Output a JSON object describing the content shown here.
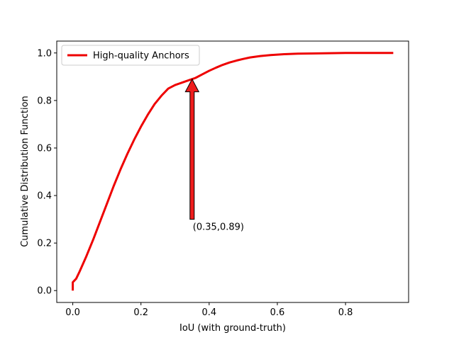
{
  "chart_data": {
    "type": "line",
    "title": "",
    "xlabel": "IoU (with ground-truth)",
    "ylabel": "Cumulative Distribution Function",
    "xlim": [
      -0.047,
      0.985
    ],
    "ylim": [
      -0.05,
      1.05
    ],
    "xticks": [
      0.0,
      0.2,
      0.4,
      0.6,
      0.8
    ],
    "xtick_labels": [
      "0.0",
      "0.2",
      "0.4",
      "0.6",
      "0.8"
    ],
    "yticks": [
      0.0,
      0.2,
      0.4,
      0.6,
      0.8,
      1.0
    ],
    "ytick_labels": [
      "0.0",
      "0.2",
      "0.4",
      "0.6",
      "0.8",
      "1.0"
    ],
    "grid": false,
    "legend": {
      "placement": "top-left"
    },
    "series": [
      {
        "name": "High-quality Anchors",
        "color": "#ee0000",
        "x": [
          0.0,
          0.0,
          0.01,
          0.02,
          0.04,
          0.06,
          0.08,
          0.1,
          0.12,
          0.14,
          0.16,
          0.18,
          0.2,
          0.22,
          0.24,
          0.26,
          0.28,
          0.3,
          0.32,
          0.34,
          0.35,
          0.36,
          0.38,
          0.4,
          0.42,
          0.44,
          0.46,
          0.48,
          0.5,
          0.52,
          0.55,
          0.58,
          0.62,
          0.66,
          0.7,
          0.75,
          0.8,
          0.85,
          0.9,
          0.94
        ],
        "y": [
          0.0,
          0.035,
          0.05,
          0.08,
          0.145,
          0.215,
          0.29,
          0.365,
          0.44,
          0.51,
          0.575,
          0.635,
          0.69,
          0.74,
          0.785,
          0.82,
          0.85,
          0.865,
          0.875,
          0.885,
          0.89,
          0.895,
          0.91,
          0.925,
          0.938,
          0.95,
          0.96,
          0.968,
          0.975,
          0.981,
          0.987,
          0.991,
          0.995,
          0.997,
          0.998,
          0.999,
          1.0,
          1.0,
          1.0,
          1.0
        ]
      }
    ],
    "annotation": {
      "text": "(0.35,0.89)",
      "point": [
        0.35,
        0.89
      ],
      "text_position": [
        0.35,
        0.3
      ],
      "arrow_color": "#ee1c1c"
    }
  }
}
